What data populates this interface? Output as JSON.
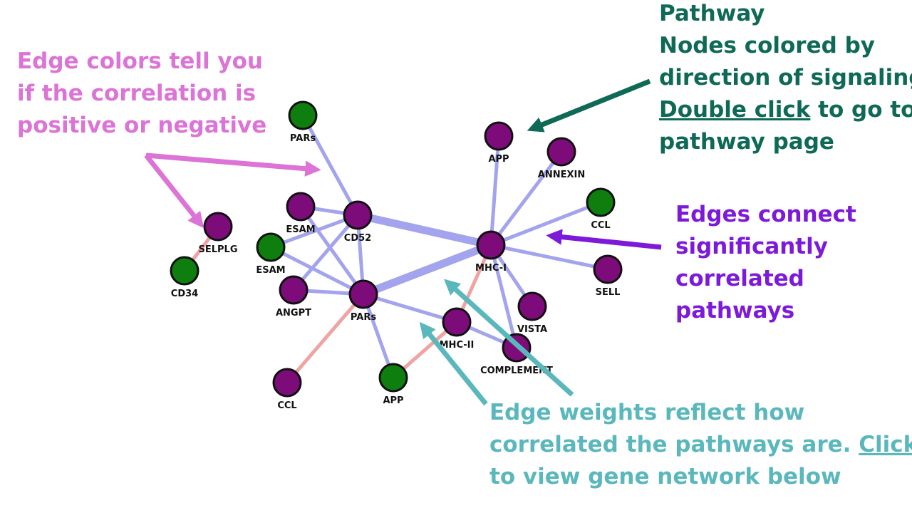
{
  "colors": {
    "node_purple": "#7d0b7a",
    "node_green": "#0e7e0e",
    "edge_positive": "#a3a3ee",
    "edge_negative": "#f0a3a3",
    "annotation_correlation": "#dc73d6",
    "annotation_pathway": "#0e6a56",
    "annotation_edges": "#7d1ad9",
    "annotation_weights": "#5ab8bd"
  },
  "annotations": {
    "correlation": {
      "line1": "Edge colors tell you",
      "line2": "if the correlation is",
      "line3": "positive or negative"
    },
    "pathway": {
      "line1": "Pathway",
      "line2": "Nodes colored by",
      "line3": "direction of signaling.",
      "line4_link": "Double click",
      "line4_rest": " to go to",
      "line5": "pathway page"
    },
    "edges": {
      "line1": "Edges connect",
      "line2": "significantly",
      "line3": "correlated",
      "line4": "pathways"
    },
    "weights": {
      "line1": "Edge weights reflect how",
      "line2_text": "correlated the pathways are. ",
      "line2_link": "Click",
      "line3": "to view gene network below"
    }
  },
  "network": {
    "nodes": [
      {
        "id": "pars_top",
        "label": "PARs",
        "color": "green"
      },
      {
        "id": "app_top",
        "label": "APP",
        "color": "purple"
      },
      {
        "id": "annexin",
        "label": "ANNEXIN",
        "color": "purple"
      },
      {
        "id": "ccl_right",
        "label": "CCL",
        "color": "green"
      },
      {
        "id": "esam1",
        "label": "ESAM",
        "color": "purple"
      },
      {
        "id": "cd52",
        "label": "CD52",
        "color": "purple"
      },
      {
        "id": "selplg",
        "label": "SELPLG",
        "color": "purple"
      },
      {
        "id": "esam2",
        "label": "ESAM",
        "color": "green"
      },
      {
        "id": "mhc1",
        "label": "MHC-I",
        "color": "purple"
      },
      {
        "id": "cd34",
        "label": "CD34",
        "color": "green"
      },
      {
        "id": "sell",
        "label": "SELL",
        "color": "purple"
      },
      {
        "id": "angpt",
        "label": "ANGPT",
        "color": "purple"
      },
      {
        "id": "pars_mid",
        "label": "PARs",
        "color": "purple"
      },
      {
        "id": "vista",
        "label": "VISTA",
        "color": "purple"
      },
      {
        "id": "mhc2",
        "label": "MHC-II",
        "color": "purple"
      },
      {
        "id": "complement",
        "label": "COMPLEMENT",
        "color": "purple"
      },
      {
        "id": "ccl_bottom",
        "label": "CCL",
        "color": "purple"
      },
      {
        "id": "app_bottom",
        "label": "APP",
        "color": "green"
      }
    ],
    "edges": [
      {
        "source": "pars_top",
        "target": "cd52",
        "sign": "positive",
        "weight": 1
      },
      {
        "source": "esam1",
        "target": "cd52",
        "sign": "positive",
        "weight": 1
      },
      {
        "source": "esam1",
        "target": "pars_mid",
        "sign": "positive",
        "weight": 1
      },
      {
        "source": "cd52",
        "target": "esam2",
        "sign": "positive",
        "weight": 1
      },
      {
        "source": "cd52",
        "target": "angpt",
        "sign": "positive",
        "weight": 1
      },
      {
        "source": "cd52",
        "target": "pars_mid",
        "sign": "positive",
        "weight": 1
      },
      {
        "source": "cd52",
        "target": "mhc1",
        "sign": "positive",
        "weight": 3
      },
      {
        "source": "esam2",
        "target": "pars_mid",
        "sign": "positive",
        "weight": 1
      },
      {
        "source": "angpt",
        "target": "pars_mid",
        "sign": "positive",
        "weight": 1
      },
      {
        "source": "pars_mid",
        "target": "mhc1",
        "sign": "positive",
        "weight": 3
      },
      {
        "source": "pars_mid",
        "target": "app_bottom",
        "sign": "positive",
        "weight": 1
      },
      {
        "source": "pars_mid",
        "target": "mhc2",
        "sign": "positive",
        "weight": 1
      },
      {
        "source": "pars_mid",
        "target": "ccl_bottom",
        "sign": "negative",
        "weight": 1
      },
      {
        "source": "mhc1",
        "target": "app_top",
        "sign": "positive",
        "weight": 1
      },
      {
        "source": "mhc1",
        "target": "annexin",
        "sign": "positive",
        "weight": 1
      },
      {
        "source": "mhc1",
        "target": "ccl_right",
        "sign": "positive",
        "weight": 1
      },
      {
        "source": "mhc1",
        "target": "sell",
        "sign": "positive",
        "weight": 1
      },
      {
        "source": "mhc1",
        "target": "vista",
        "sign": "positive",
        "weight": 1
      },
      {
        "source": "mhc1",
        "target": "complement",
        "sign": "positive",
        "weight": 1
      },
      {
        "source": "mhc1",
        "target": "mhc2",
        "sign": "negative",
        "weight": 1
      },
      {
        "source": "mhc2",
        "target": "app_bottom",
        "sign": "negative",
        "weight": 1
      },
      {
        "source": "mhc2",
        "target": "complement",
        "sign": "positive",
        "weight": 1
      },
      {
        "source": "selplg",
        "target": "cd34",
        "sign": "negative",
        "weight": 1
      }
    ]
  }
}
